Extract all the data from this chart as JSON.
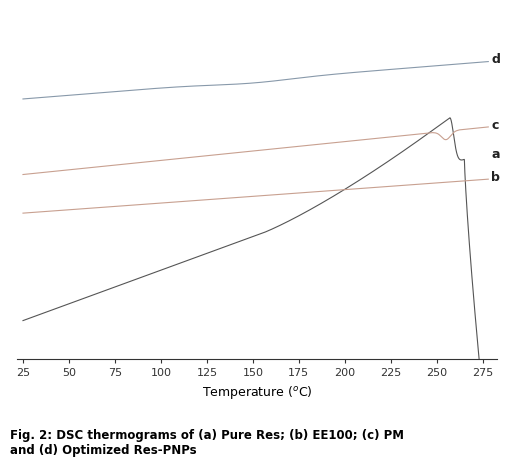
{
  "xlabel": "Temperature ($^{o}$C)",
  "xlim": [
    22,
    283
  ],
  "ylim": [
    -1.05,
    1.0
  ],
  "xticks": [
    25,
    50,
    75,
    100,
    125,
    150,
    175,
    200,
    225,
    250,
    275
  ],
  "caption_line1": "Fig. 2: DSC thermograms of (a) Pure Res; (b) EE100; (c) PM",
  "caption_line2": "and (d) Optimized Res-PNPs",
  "background_color": "#ffffff",
  "curve_a_color": "#555555",
  "curve_b_color": "#c8a090",
  "curve_c_color": "#c8a090",
  "curve_d_color": "#8899aa",
  "label_color": "#222222"
}
